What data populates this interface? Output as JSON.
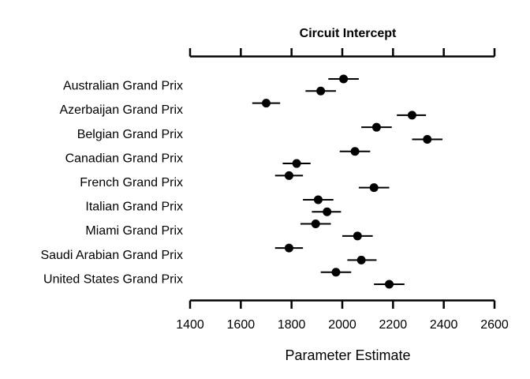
{
  "chart_data": {
    "type": "scatter",
    "title": "Circuit Intercept",
    "xlabel": "Parameter Estimate",
    "ylabel": "",
    "xlim": [
      1400,
      2600
    ],
    "x_ticks": [
      1400,
      1600,
      1800,
      2000,
      2200,
      2400,
      2600
    ],
    "x_tick_labels": [
      "1400",
      "1600",
      "1800",
      "2000",
      "2200",
      "2400",
      "2600"
    ],
    "grid": false,
    "categories": [
      "Australian Grand Prix",
      "Azerbaijan Grand Prix",
      "Belgian Grand Prix",
      "Canadian Grand Prix",
      "French Grand Prix",
      "Italian Grand Prix",
      "Miami Grand Prix",
      "Saudi Arabian Grand Prix",
      "United States Grand Prix"
    ],
    "points": [
      {
        "x": 2005,
        "lower": 1945,
        "upper": 2065
      },
      {
        "x": 1915,
        "lower": 1855,
        "upper": 1975
      },
      {
        "x": 1700,
        "lower": 1645,
        "upper": 1755
      },
      {
        "x": 2275,
        "lower": 2215,
        "upper": 2330
      },
      {
        "x": 2135,
        "lower": 2075,
        "upper": 2195
      },
      {
        "x": 2335,
        "lower": 2275,
        "upper": 2395
      },
      {
        "x": 2050,
        "lower": 1990,
        "upper": 2110
      },
      {
        "x": 1820,
        "lower": 1765,
        "upper": 1875
      },
      {
        "x": 1790,
        "lower": 1735,
        "upper": 1845
      },
      {
        "x": 2125,
        "lower": 2065,
        "upper": 2185
      },
      {
        "x": 1905,
        "lower": 1845,
        "upper": 1965
      },
      {
        "x": 1940,
        "lower": 1880,
        "upper": 1995
      },
      {
        "x": 1895,
        "lower": 1835,
        "upper": 1955
      },
      {
        "x": 2060,
        "lower": 2000,
        "upper": 2120
      },
      {
        "x": 1790,
        "lower": 1735,
        "upper": 1845
      },
      {
        "x": 2075,
        "lower": 2020,
        "upper": 2135
      },
      {
        "x": 1975,
        "lower": 1915,
        "upper": 2035
      },
      {
        "x": 2185,
        "lower": 2125,
        "upper": 2245
      }
    ]
  }
}
